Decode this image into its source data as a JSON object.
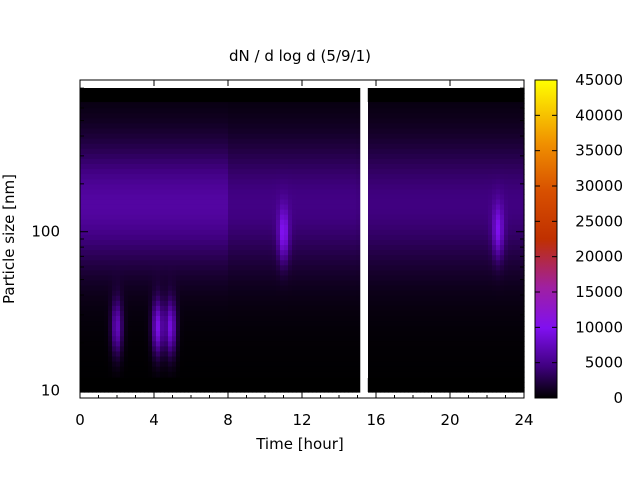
{
  "chart_data": {
    "type": "heatmap",
    "title": "dN / d log d (5/9/1)",
    "xlabel": "Time [hour]",
    "ylabel": "Particle size [nm]",
    "x_range": [
      0,
      24
    ],
    "y_range_nm": [
      9,
      900
    ],
    "y_scale": "log",
    "x_ticks": [
      0,
      4,
      8,
      12,
      16,
      20,
      24
    ],
    "y_ticks": [
      10,
      100
    ],
    "colorbar": {
      "min": 0,
      "max": 45000,
      "ticks": [
        0,
        5000,
        10000,
        15000,
        20000,
        25000,
        30000,
        35000,
        40000,
        45000
      ],
      "palette": "gnuplot"
    },
    "data_gap_hours": [
      15.15,
      15.55
    ],
    "size_mode_nm": 150,
    "peak_events": [
      {
        "time": 2.0,
        "size_nm": 25,
        "value": 7000
      },
      {
        "time": 4.2,
        "size_nm": 25,
        "value": 9000
      },
      {
        "time": 4.9,
        "size_nm": 25,
        "value": 8500
      },
      {
        "time": 11.0,
        "size_nm": 95,
        "value": 6500
      },
      {
        "time": 22.6,
        "size_nm": 100,
        "value": 6000
      }
    ],
    "grid": false,
    "legend": "colorbar-right"
  }
}
